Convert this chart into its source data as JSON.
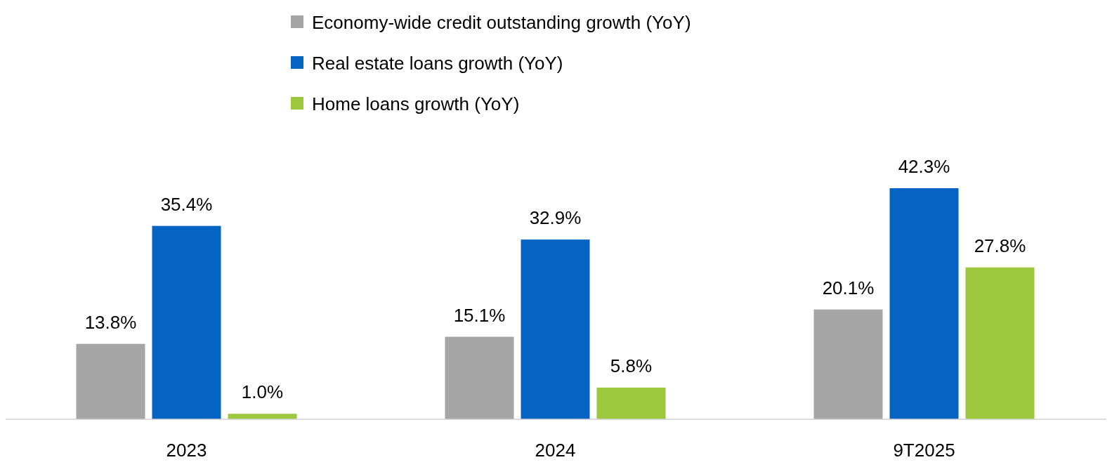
{
  "chart_data": {
    "type": "bar",
    "categories": [
      "2023",
      "2024",
      "9T2025"
    ],
    "series": [
      {
        "name": "Economy-wide credit outstanding growth (YoY)",
        "color": "#a5a5a5",
        "values": [
          13.8,
          15.1,
          20.1
        ],
        "value_labels": [
          "13.8%",
          "15.1%",
          "20.1%"
        ]
      },
      {
        "name": "Real estate loans growth (YoY)",
        "color": "#0563c4",
        "values": [
          35.4,
          32.9,
          42.3
        ],
        "value_labels": [
          "35.4%",
          "32.9%",
          "42.3%"
        ]
      },
      {
        "name": "Home loans growth (YoY)",
        "color": "#9bc83c",
        "values": [
          1.0,
          5.8,
          27.8
        ],
        "value_labels": [
          "1.0%",
          "5.8%",
          "27.8%"
        ]
      }
    ],
    "legend": "top"
  }
}
